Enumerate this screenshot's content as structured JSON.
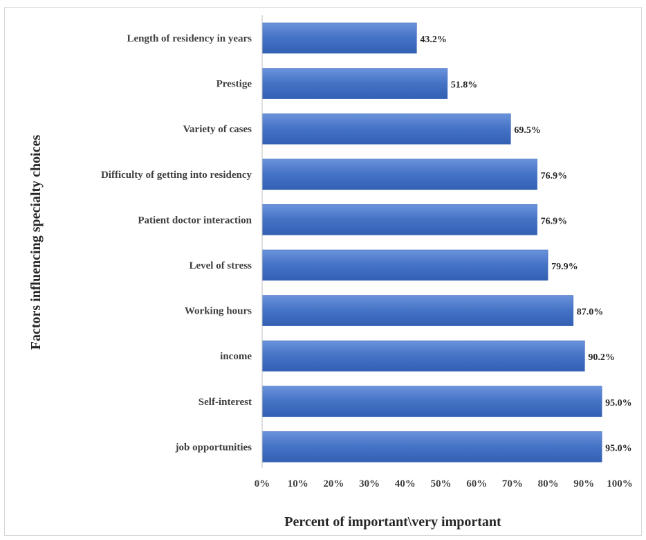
{
  "chart_data": {
    "type": "bar",
    "orientation": "horizontal",
    "categories": [
      "Length of residency in years",
      "Prestige",
      "Variety of cases",
      "Difficulty of getting into residency",
      "Patient doctor interaction",
      "Level of stress",
      "Working hours",
      "income",
      "Self-interest",
      "job opportunities"
    ],
    "values": [
      43.2,
      51.8,
      69.5,
      76.9,
      76.9,
      79.9,
      87.0,
      90.2,
      95.0,
      95.0
    ],
    "value_labels": [
      "43.2%",
      "51.8%",
      "69.5%",
      "76.9%",
      "76.9%",
      "79.9%",
      "87.0%",
      "90.2%",
      "95.0%",
      "95.0%"
    ],
    "xlabel": "Percent of important\\very important",
    "ylabel": "Factors influencing specialty choices",
    "xlim": [
      0,
      100
    ],
    "xticks": [
      "0%",
      "10%",
      "20%",
      "30%",
      "40%",
      "50%",
      "60%",
      "70%",
      "80%",
      "90%",
      "100%"
    ],
    "grid": false,
    "bar_color": "#4472c4"
  }
}
